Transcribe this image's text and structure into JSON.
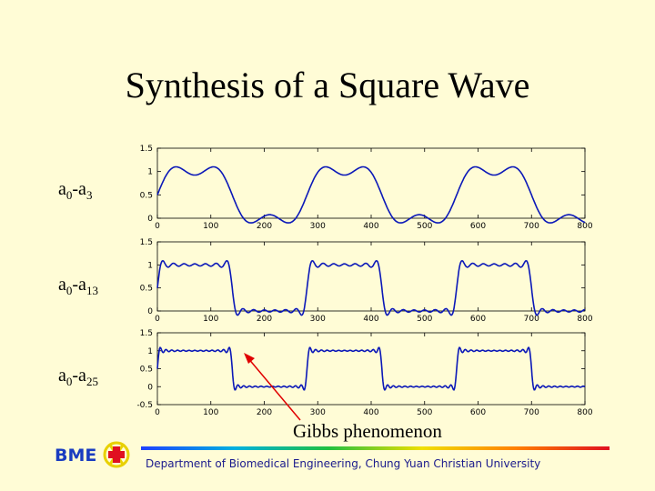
{
  "title": "Synthesis of a Square Wave",
  "rows": [
    {
      "label_base": "a",
      "label_sub0": "0",
      "label_dash": "-a",
      "label_sub1": "3"
    },
    {
      "label_base": "a",
      "label_sub0": "0",
      "label_dash": "-a",
      "label_sub1": "13"
    },
    {
      "label_base": "a",
      "label_sub0": "0",
      "label_dash": "-a",
      "label_sub1": "25"
    }
  ],
  "annotation": "Gibbs phenomenon",
  "footer": "Department of Biomedical Engineering, Chung Yuan Christian University",
  "logo_text": "BME",
  "colors": {
    "line": "#0b18b8",
    "arrow": "#e00000",
    "background": "#fffcd6"
  },
  "chart_data": [
    {
      "type": "line",
      "series": [
        {
          "harmonics": 3
        }
      ],
      "x_range": [
        0,
        800
      ],
      "ylim": [
        0,
        1.5
      ],
      "xticks": [
        "0",
        "100",
        "200",
        "300",
        "400",
        "500",
        "600",
        "700",
        "800"
      ],
      "yticks": [
        "0",
        "0.5",
        "1",
        "1.5"
      ],
      "period": 280,
      "grid": false
    },
    {
      "type": "line",
      "series": [
        {
          "harmonics": 13
        }
      ],
      "x_range": [
        0,
        800
      ],
      "ylim": [
        0,
        1.5
      ],
      "xticks": [
        "0",
        "100",
        "200",
        "300",
        "400",
        "500",
        "600",
        "700",
        "800"
      ],
      "yticks": [
        "0",
        "0.5",
        "1",
        "1.5"
      ],
      "period": 280,
      "grid": false
    },
    {
      "type": "line",
      "series": [
        {
          "harmonics": 25
        }
      ],
      "x_range": [
        0,
        800
      ],
      "ylim": [
        -0.5,
        1.5
      ],
      "xticks": [
        "0",
        "100",
        "200",
        "300",
        "400",
        "500",
        "600",
        "700",
        "800"
      ],
      "yticks": [
        "-0.5",
        "0",
        "0.5",
        "1",
        "1.5"
      ],
      "period": 280,
      "grid": false
    }
  ]
}
